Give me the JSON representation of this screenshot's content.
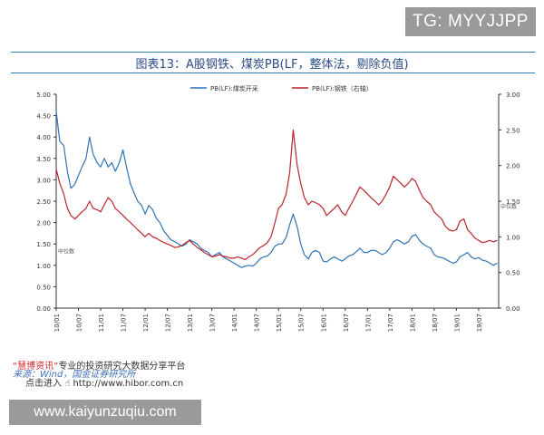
{
  "watermark_top": "TG: MYYJJPP",
  "watermark_bottom": "www.kaiyunzuqiu.com",
  "footer": {
    "brand": "“慧博资讯”",
    "platform": "专业的投资研究大数据分享平台",
    "source": "来源：Wind，国金证券研究所",
    "click": "点击进入",
    "url": "http://www.hibor.com.cn"
  },
  "colors": {
    "coal": "#2f73b5",
    "steel": "#b8262d",
    "accent": "#2b7bb8"
  },
  "chart_data": {
    "type": "line",
    "title": "图表13：A股钢铁、煤炭PB(LF，整体法，剔除负值)",
    "x_ticks": [
      "10/01",
      "10/07",
      "11/01",
      "11/07",
      "12/01",
      "12/07",
      "13/01",
      "13/07",
      "14/01",
      "14/07",
      "15/01",
      "15/07",
      "16/01",
      "16/07",
      "17/01",
      "17/07",
      "18/01",
      "18/07",
      "19/01",
      "19/07"
    ],
    "x_range": [
      2010.0,
      2019.95
    ],
    "y_left": {
      "range": [
        0,
        5
      ],
      "ticks": [
        "0.00",
        "0.50",
        "1.00",
        "1.50",
        "2.00",
        "2.50",
        "3.00",
        "3.50",
        "4.00",
        "4.50",
        "5.00"
      ]
    },
    "y_right": {
      "range": [
        0,
        3
      ],
      "ticks": [
        "0.00",
        "0.50",
        "1.00",
        "1.50",
        "2.00",
        "2.50",
        "3.00"
      ]
    },
    "annotations": {
      "left_median": "中位数",
      "right_median": "中位数"
    },
    "series": [
      {
        "name": "PB(LF):煤炭开采",
        "axis": "left",
        "points": [
          [
            2010.0,
            4.6
          ],
          [
            2010.08,
            3.9
          ],
          [
            2010.17,
            3.8
          ],
          [
            2010.25,
            3.2
          ],
          [
            2010.33,
            2.8
          ],
          [
            2010.42,
            2.9
          ],
          [
            2010.5,
            3.1
          ],
          [
            2010.58,
            3.3
          ],
          [
            2010.67,
            3.5
          ],
          [
            2010.75,
            4.0
          ],
          [
            2010.83,
            3.6
          ],
          [
            2010.92,
            3.4
          ],
          [
            2011.0,
            3.3
          ],
          [
            2011.08,
            3.5
          ],
          [
            2011.17,
            3.3
          ],
          [
            2011.25,
            3.4
          ],
          [
            2011.33,
            3.2
          ],
          [
            2011.42,
            3.4
          ],
          [
            2011.5,
            3.7
          ],
          [
            2011.58,
            3.3
          ],
          [
            2011.67,
            2.9
          ],
          [
            2011.75,
            2.7
          ],
          [
            2011.83,
            2.5
          ],
          [
            2011.92,
            2.4
          ],
          [
            2012.0,
            2.2
          ],
          [
            2012.08,
            2.4
          ],
          [
            2012.17,
            2.3
          ],
          [
            2012.25,
            2.1
          ],
          [
            2012.33,
            2.0
          ],
          [
            2012.42,
            1.8
          ],
          [
            2012.5,
            1.7
          ],
          [
            2012.58,
            1.6
          ],
          [
            2012.67,
            1.55
          ],
          [
            2012.75,
            1.5
          ],
          [
            2012.83,
            1.45
          ],
          [
            2012.92,
            1.5
          ],
          [
            2013.0,
            1.6
          ],
          [
            2013.08,
            1.55
          ],
          [
            2013.17,
            1.5
          ],
          [
            2013.25,
            1.4
          ],
          [
            2013.33,
            1.35
          ],
          [
            2013.42,
            1.3
          ],
          [
            2013.5,
            1.2
          ],
          [
            2013.58,
            1.25
          ],
          [
            2013.67,
            1.3
          ],
          [
            2013.75,
            1.2
          ],
          [
            2013.83,
            1.15
          ],
          [
            2013.92,
            1.1
          ],
          [
            2014.0,
            1.05
          ],
          [
            2014.08,
            1.0
          ],
          [
            2014.17,
            0.95
          ],
          [
            2014.25,
            0.98
          ],
          [
            2014.33,
            1.0
          ],
          [
            2014.42,
            0.98
          ],
          [
            2014.5,
            1.05
          ],
          [
            2014.58,
            1.15
          ],
          [
            2014.67,
            1.2
          ],
          [
            2014.75,
            1.22
          ],
          [
            2014.83,
            1.3
          ],
          [
            2014.92,
            1.45
          ],
          [
            2015.0,
            1.5
          ],
          [
            2015.08,
            1.5
          ],
          [
            2015.17,
            1.65
          ],
          [
            2015.25,
            1.95
          ],
          [
            2015.33,
            2.2
          ],
          [
            2015.42,
            1.9
          ],
          [
            2015.5,
            1.5
          ],
          [
            2015.58,
            1.25
          ],
          [
            2015.67,
            1.15
          ],
          [
            2015.75,
            1.3
          ],
          [
            2015.83,
            1.35
          ],
          [
            2015.92,
            1.3
          ],
          [
            2016.0,
            1.1
          ],
          [
            2016.08,
            1.08
          ],
          [
            2016.17,
            1.15
          ],
          [
            2016.25,
            1.2
          ],
          [
            2016.33,
            1.15
          ],
          [
            2016.42,
            1.1
          ],
          [
            2016.5,
            1.15
          ],
          [
            2016.58,
            1.22
          ],
          [
            2016.67,
            1.25
          ],
          [
            2016.75,
            1.32
          ],
          [
            2016.83,
            1.4
          ],
          [
            2016.92,
            1.3
          ],
          [
            2017.0,
            1.3
          ],
          [
            2017.08,
            1.35
          ],
          [
            2017.17,
            1.35
          ],
          [
            2017.25,
            1.3
          ],
          [
            2017.33,
            1.25
          ],
          [
            2017.42,
            1.3
          ],
          [
            2017.5,
            1.4
          ],
          [
            2017.58,
            1.55
          ],
          [
            2017.67,
            1.6
          ],
          [
            2017.75,
            1.55
          ],
          [
            2017.83,
            1.5
          ],
          [
            2017.92,
            1.55
          ],
          [
            2018.0,
            1.68
          ],
          [
            2018.08,
            1.72
          ],
          [
            2018.17,
            1.58
          ],
          [
            2018.25,
            1.5
          ],
          [
            2018.33,
            1.45
          ],
          [
            2018.42,
            1.4
          ],
          [
            2018.5,
            1.25
          ],
          [
            2018.58,
            1.2
          ],
          [
            2018.67,
            1.18
          ],
          [
            2018.75,
            1.15
          ],
          [
            2018.83,
            1.1
          ],
          [
            2018.92,
            1.05
          ],
          [
            2019.0,
            1.08
          ],
          [
            2019.08,
            1.2
          ],
          [
            2019.17,
            1.25
          ],
          [
            2019.25,
            1.3
          ],
          [
            2019.33,
            1.2
          ],
          [
            2019.42,
            1.15
          ],
          [
            2019.5,
            1.18
          ],
          [
            2019.58,
            1.12
          ],
          [
            2019.67,
            1.1
          ],
          [
            2019.75,
            1.05
          ],
          [
            2019.83,
            1.0
          ],
          [
            2019.92,
            1.05
          ]
        ]
      },
      {
        "name": "PB(LF):钢铁（右轴）",
        "axis": "right",
        "points": [
          [
            2010.0,
            1.95
          ],
          [
            2010.08,
            1.75
          ],
          [
            2010.17,
            1.6
          ],
          [
            2010.25,
            1.4
          ],
          [
            2010.33,
            1.3
          ],
          [
            2010.42,
            1.25
          ],
          [
            2010.5,
            1.3
          ],
          [
            2010.58,
            1.35
          ],
          [
            2010.67,
            1.4
          ],
          [
            2010.75,
            1.5
          ],
          [
            2010.83,
            1.4
          ],
          [
            2010.92,
            1.38
          ],
          [
            2011.0,
            1.35
          ],
          [
            2011.08,
            1.45
          ],
          [
            2011.17,
            1.55
          ],
          [
            2011.25,
            1.5
          ],
          [
            2011.33,
            1.4
          ],
          [
            2011.42,
            1.35
          ],
          [
            2011.5,
            1.3
          ],
          [
            2011.58,
            1.25
          ],
          [
            2011.67,
            1.2
          ],
          [
            2011.75,
            1.15
          ],
          [
            2011.83,
            1.1
          ],
          [
            2011.92,
            1.05
          ],
          [
            2012.0,
            1.0
          ],
          [
            2012.08,
            1.05
          ],
          [
            2012.17,
            1.0
          ],
          [
            2012.25,
            0.98
          ],
          [
            2012.33,
            0.95
          ],
          [
            2012.42,
            0.92
          ],
          [
            2012.5,
            0.9
          ],
          [
            2012.58,
            0.88
          ],
          [
            2012.67,
            0.85
          ],
          [
            2012.75,
            0.86
          ],
          [
            2012.83,
            0.88
          ],
          [
            2012.92,
            0.92
          ],
          [
            2013.0,
            0.95
          ],
          [
            2013.08,
            0.9
          ],
          [
            2013.17,
            0.85
          ],
          [
            2013.25,
            0.82
          ],
          [
            2013.33,
            0.78
          ],
          [
            2013.42,
            0.75
          ],
          [
            2013.5,
            0.72
          ],
          [
            2013.58,
            0.73
          ],
          [
            2013.67,
            0.75
          ],
          [
            2013.75,
            0.73
          ],
          [
            2013.83,
            0.72
          ],
          [
            2013.92,
            0.7
          ],
          [
            2014.0,
            0.7
          ],
          [
            2014.08,
            0.72
          ],
          [
            2014.17,
            0.7
          ],
          [
            2014.25,
            0.68
          ],
          [
            2014.33,
            0.72
          ],
          [
            2014.42,
            0.75
          ],
          [
            2014.5,
            0.8
          ],
          [
            2014.58,
            0.85
          ],
          [
            2014.67,
            0.88
          ],
          [
            2014.75,
            0.92
          ],
          [
            2014.83,
            1.0
          ],
          [
            2014.92,
            1.2
          ],
          [
            2015.0,
            1.4
          ],
          [
            2015.08,
            1.45
          ],
          [
            2015.17,
            1.6
          ],
          [
            2015.25,
            1.9
          ],
          [
            2015.33,
            2.5
          ],
          [
            2015.42,
            2.0
          ],
          [
            2015.5,
            1.75
          ],
          [
            2015.58,
            1.55
          ],
          [
            2015.67,
            1.45
          ],
          [
            2015.75,
            1.5
          ],
          [
            2015.83,
            1.48
          ],
          [
            2015.92,
            1.45
          ],
          [
            2016.0,
            1.4
          ],
          [
            2016.08,
            1.3
          ],
          [
            2016.17,
            1.35
          ],
          [
            2016.25,
            1.4
          ],
          [
            2016.33,
            1.45
          ],
          [
            2016.42,
            1.35
          ],
          [
            2016.5,
            1.3
          ],
          [
            2016.58,
            1.4
          ],
          [
            2016.67,
            1.5
          ],
          [
            2016.75,
            1.6
          ],
          [
            2016.83,
            1.7
          ],
          [
            2016.92,
            1.65
          ],
          [
            2017.0,
            1.6
          ],
          [
            2017.08,
            1.55
          ],
          [
            2017.17,
            1.5
          ],
          [
            2017.25,
            1.45
          ],
          [
            2017.33,
            1.5
          ],
          [
            2017.42,
            1.6
          ],
          [
            2017.5,
            1.7
          ],
          [
            2017.58,
            1.85
          ],
          [
            2017.67,
            1.8
          ],
          [
            2017.75,
            1.75
          ],
          [
            2017.83,
            1.7
          ],
          [
            2017.92,
            1.75
          ],
          [
            2018.0,
            1.82
          ],
          [
            2018.08,
            1.78
          ],
          [
            2018.17,
            1.65
          ],
          [
            2018.25,
            1.55
          ],
          [
            2018.33,
            1.5
          ],
          [
            2018.42,
            1.45
          ],
          [
            2018.5,
            1.35
          ],
          [
            2018.58,
            1.3
          ],
          [
            2018.67,
            1.25
          ],
          [
            2018.75,
            1.15
          ],
          [
            2018.83,
            1.1
          ],
          [
            2018.92,
            1.08
          ],
          [
            2019.0,
            1.1
          ],
          [
            2019.08,
            1.22
          ],
          [
            2019.17,
            1.25
          ],
          [
            2019.25,
            1.1
          ],
          [
            2019.33,
            1.05
          ],
          [
            2019.42,
            0.98
          ],
          [
            2019.5,
            0.95
          ],
          [
            2019.58,
            0.92
          ],
          [
            2019.67,
            0.93
          ],
          [
            2019.75,
            0.95
          ],
          [
            2019.83,
            0.93
          ],
          [
            2019.92,
            0.95
          ]
        ]
      }
    ]
  }
}
